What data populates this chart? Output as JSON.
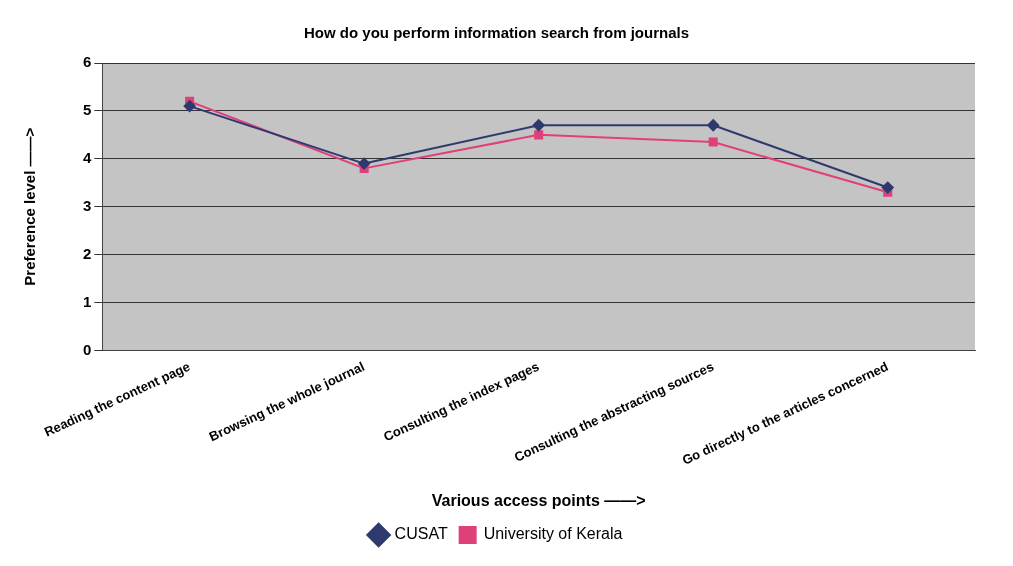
{
  "chart_data": {
    "type": "line",
    "title": "How do you perform information search from journals",
    "xlabel": "Various access points ——>",
    "ylabel": "Preference level ——>",
    "categories": [
      "Reading the content page",
      "Browsing the whole journal",
      "Consulting the index pages",
      "Consulting the abstracting sources",
      "Go directly to the articles concerned"
    ],
    "series": [
      {
        "name": "CUSAT",
        "color": "#2e3a6e",
        "marker": "diamond",
        "values": [
          5.1,
          3.9,
          4.7,
          4.7,
          3.4
        ]
      },
      {
        "name": "University of Kerala",
        "color": "#e0407a",
        "marker": "square",
        "values": [
          5.2,
          3.8,
          4.5,
          4.35,
          3.3
        ]
      }
    ],
    "ylim": [
      0,
      6
    ],
    "yticks": [
      0,
      1,
      2,
      3,
      4,
      5,
      6
    ],
    "grid": "y",
    "legend": "bottom"
  }
}
